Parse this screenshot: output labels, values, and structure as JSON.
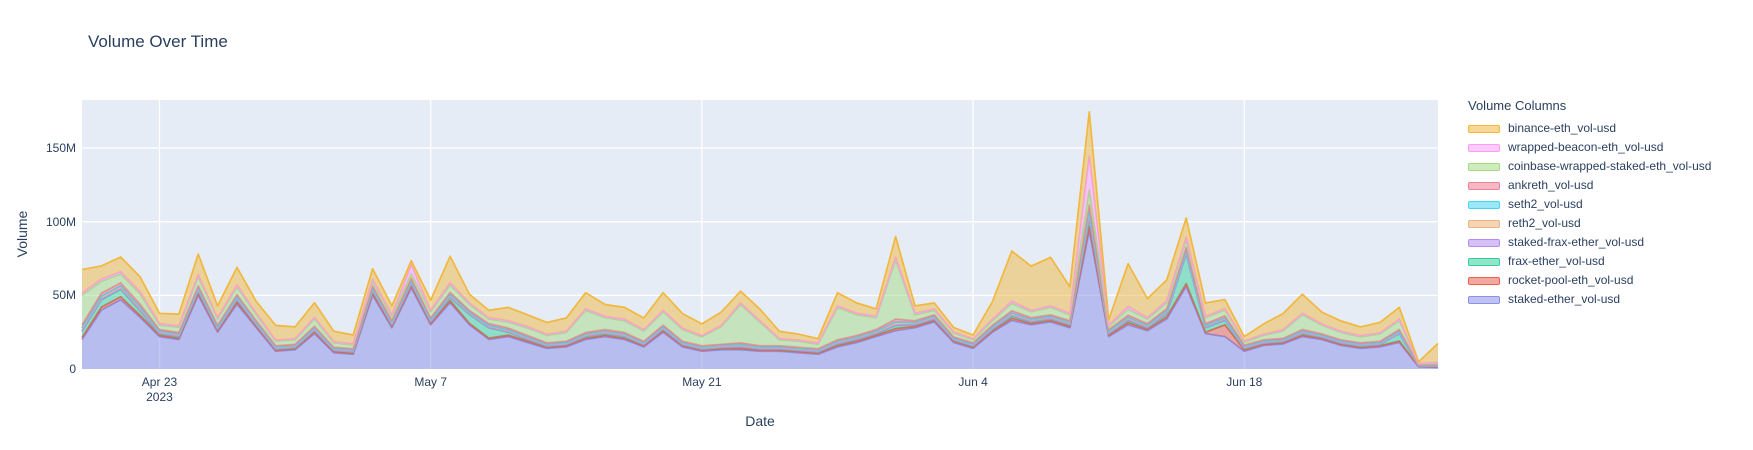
{
  "header": {
    "title": "Volume Over Time"
  },
  "chart_data": {
    "type": "area",
    "stacked": true,
    "title": "Volume Over Time",
    "xlabel": "Date",
    "ylabel": "Volume",
    "legend_title": "Volume Columns",
    "legend_position": "right",
    "grid": true,
    "plot_bg": "#e5ecf6",
    "grid_color": "#ffffff",
    "text_color": "#2a3f5f",
    "fill_alpha": 0.5,
    "unit": "M (millions USD)",
    "ylim": [
      0,
      182.6
    ],
    "yticks": [
      {
        "v": 0,
        "label": "0"
      },
      {
        "v": 50,
        "label": "50M"
      },
      {
        "v": 100,
        "label": "100M"
      },
      {
        "v": 150,
        "label": "150M"
      }
    ],
    "xticks": [
      {
        "day": 4,
        "label": "Apr 23",
        "sublabel": "2023"
      },
      {
        "day": 18,
        "label": "May 7",
        "sublabel": ""
      },
      {
        "day": 32,
        "label": "May 21",
        "sublabel": ""
      },
      {
        "day": 46,
        "label": "Jun 4",
        "sublabel": ""
      },
      {
        "day": 60,
        "label": "Jun 18",
        "sublabel": ""
      }
    ],
    "x": [
      "Apr 19",
      "Apr 20",
      "Apr 21",
      "Apr 22",
      "Apr 23",
      "Apr 24",
      "Apr 25",
      "Apr 26",
      "Apr 27",
      "Apr 28",
      "Apr 29",
      "Apr 30",
      "May 1",
      "May 2",
      "May 3",
      "May 4",
      "May 5",
      "May 6",
      "May 7",
      "May 8",
      "May 9",
      "May 10",
      "May 11",
      "May 12",
      "May 13",
      "May 14",
      "May 15",
      "May 16",
      "May 17",
      "May 18",
      "May 19",
      "May 20",
      "May 21",
      "May 22",
      "May 23",
      "May 24",
      "May 25",
      "May 26",
      "May 27",
      "May 28",
      "May 29",
      "May 30",
      "May 31",
      "Jun 1",
      "Jun 2",
      "Jun 3",
      "Jun 4",
      "Jun 5",
      "Jun 6",
      "Jun 7",
      "Jun 8",
      "Jun 9",
      "Jun 10",
      "Jun 11",
      "Jun 12",
      "Jun 13",
      "Jun 14",
      "Jun 15",
      "Jun 16",
      "Jun 17",
      "Jun 18",
      "Jun 19",
      "Jun 20",
      "Jun 21",
      "Jun 22",
      "Jun 23",
      "Jun 24",
      "Jun 25",
      "Jun 26",
      "Jun 27",
      "Jun 28"
    ],
    "stack_order": "reverse-of-legend",
    "series": [
      {
        "key": "binance-eth",
        "name": "binance-eth_vol-usd",
        "color": "#f2b73d",
        "values": [
          16,
          9,
          10,
          10,
          7,
          8,
          14,
          8,
          12,
          8,
          10,
          8,
          10,
          7,
          6,
          7,
          6,
          3,
          7,
          18,
          6,
          5,
          9,
          8,
          8,
          9,
          11,
          8,
          8,
          8,
          12,
          10,
          8,
          9,
          8,
          8,
          5,
          4,
          3,
          9,
          7,
          5,
          14,
          5,
          4,
          3,
          2.5,
          12,
          34,
          30,
          33,
          18,
          30,
          3.5,
          29,
          13,
          14,
          13,
          9,
          6,
          3,
          7,
          11,
          13,
          8,
          7,
          6,
          7,
          8,
          1,
          13
        ]
      },
      {
        "key": "wrapped-beacon-eth",
        "name": "wrapped-beacon-eth_vol-usd",
        "color": "#fb9ff5",
        "values": [
          1.5,
          1.5,
          1.5,
          1.5,
          1,
          1,
          1.5,
          1,
          1.5,
          1,
          0.8,
          0.8,
          1,
          0.8,
          0.8,
          1.5,
          1,
          6,
          1,
          1.5,
          1,
          1,
          1,
          1,
          0.8,
          0.8,
          1,
          1,
          1,
          0.8,
          1,
          0.8,
          0.8,
          0.8,
          1,
          0.8,
          0.8,
          0.8,
          0.8,
          1,
          1,
          1,
          2,
          1,
          1,
          0.8,
          0.8,
          1,
          1.5,
          1,
          1,
          1,
          23,
          1,
          2,
          1,
          1.5,
          2,
          1,
          1,
          0.8,
          0.8,
          0.8,
          1,
          0.8,
          0.8,
          0.8,
          0.8,
          1,
          0.3,
          0.5
        ]
      },
      {
        "key": "coinbase-wseth",
        "name": "coinbase-wrapped-staked-eth_vol-usd",
        "color": "#a5db84",
        "values": [
          20,
          8,
          6,
          7,
          3,
          3.5,
          6,
          4,
          5,
          4,
          3,
          3,
          5,
          3,
          2.5,
          3,
          3,
          3,
          4,
          5,
          4,
          3,
          4,
          5,
          5,
          6,
          15,
          8,
          8,
          7,
          9,
          8,
          6,
          12,
          26,
          16,
          4,
          4,
          3,
          22,
          14,
          8,
          40,
          4,
          3,
          2.5,
          2,
          3,
          5,
          4,
          5,
          4,
          10,
          2,
          4,
          3,
          4,
          5,
          4,
          4,
          2,
          3,
          5,
          10,
          6,
          5,
          4,
          5,
          6,
          0.5,
          1
        ]
      },
      {
        "key": "ankreth",
        "name": "ankreth_vol-usd",
        "color": "#f17e96",
        "values": [
          2,
          2,
          2,
          2,
          1.2,
          1.2,
          1.5,
          1.2,
          1.5,
          1.2,
          1,
          1,
          1.2,
          1,
          1,
          1.5,
          1.2,
          1.5,
          1.2,
          1.5,
          1.2,
          1.2,
          1.2,
          1.2,
          1,
          1,
          1.2,
          1.2,
          1.2,
          1,
          1.2,
          1,
          1,
          1,
          1.2,
          1,
          1,
          1,
          1,
          1.2,
          1.2,
          1.2,
          2,
          1.2,
          1.2,
          1,
          1,
          1.2,
          1.5,
          1.2,
          1.2,
          1.2,
          4,
          1.2,
          1.5,
          1.2,
          1.5,
          2,
          1.2,
          1.5,
          1,
          1,
          1,
          1.2,
          1,
          1,
          1,
          1,
          1.2,
          0.4,
          0.5
        ]
      },
      {
        "key": "seth2",
        "name": "seth2_vol-usd",
        "color": "#46d4f0",
        "values": [
          0.5,
          0.5,
          0.5,
          0.5,
          0.3,
          0.3,
          0.4,
          0.3,
          0.4,
          0.3,
          0.2,
          0.2,
          0.3,
          0.2,
          0.2,
          0.4,
          0.3,
          0.4,
          0.3,
          0.4,
          0.3,
          0.3,
          0.3,
          0.3,
          0.2,
          0.2,
          0.3,
          0.3,
          0.3,
          0.2,
          0.3,
          0.2,
          0.2,
          0.2,
          0.3,
          0.2,
          0.2,
          0.2,
          0.2,
          0.3,
          0.3,
          0.3,
          0.5,
          0.3,
          0.3,
          0.2,
          0.2,
          0.3,
          0.4,
          0.3,
          0.3,
          0.3,
          1.5,
          0.3,
          0.4,
          0.3,
          0.4,
          0.5,
          0.3,
          0.3,
          0.2,
          0.2,
          0.2,
          0.3,
          0.2,
          0.2,
          0.2,
          0.2,
          0.3,
          0.1,
          0.1
        ]
      },
      {
        "key": "reth2",
        "name": "reth2_vol-usd",
        "color": "#eeb17d",
        "values": [
          1.5,
          1.5,
          1.5,
          1.5,
          1,
          1,
          1.2,
          1,
          1.2,
          1,
          0.8,
          0.8,
          1,
          0.8,
          0.8,
          1.2,
          1,
          1.2,
          1,
          1.2,
          1,
          1,
          1,
          1,
          0.8,
          0.8,
          1,
          1,
          1,
          0.8,
          1,
          0.8,
          0.8,
          0.8,
          1,
          0.8,
          0.8,
          0.8,
          0.8,
          1,
          1,
          1,
          1.5,
          1,
          1,
          0.8,
          0.8,
          1,
          1.2,
          1,
          1,
          1,
          3,
          1,
          1.2,
          1,
          1.2,
          1.5,
          1,
          1,
          0.8,
          0.8,
          0.8,
          1,
          0.8,
          0.8,
          0.8,
          0.8,
          1,
          0.3,
          0.4
        ]
      },
      {
        "key": "staked-frax-ether",
        "name": "staked-frax-ether_vol-usd",
        "color": "#b78cf2",
        "values": [
          0.5,
          0.5,
          0.5,
          0.5,
          0.3,
          0.3,
          0.4,
          0.3,
          0.4,
          0.3,
          0.2,
          0.2,
          0.3,
          0.2,
          0.2,
          0.4,
          0.3,
          0.4,
          0.3,
          0.4,
          0.3,
          0.3,
          0.3,
          0.3,
          0.2,
          0.2,
          0.3,
          0.3,
          0.3,
          0.2,
          0.3,
          0.2,
          0.2,
          0.2,
          0.3,
          0.2,
          0.2,
          0.2,
          0.2,
          0.3,
          0.3,
          0.3,
          0.4,
          0.3,
          0.3,
          0.2,
          0.2,
          0.3,
          0.4,
          0.3,
          0.3,
          0.3,
          1,
          0.3,
          0.4,
          0.3,
          0.4,
          0.5,
          0.3,
          0.3,
          0.2,
          0.2,
          0.2,
          0.3,
          0.2,
          0.2,
          0.2,
          0.2,
          0.3,
          0.1,
          0.1
        ]
      },
      {
        "key": "frax-ether",
        "name": "frax-ether_vol-usd",
        "color": "#37cf9b",
        "values": [
          4,
          5,
          5,
          3,
          1,
          1,
          1.5,
          1,
          1.5,
          1,
          0.8,
          0.8,
          1,
          0.8,
          0.8,
          1.5,
          1,
          1.5,
          1,
          2,
          6,
          7,
          2,
          1,
          0.8,
          0.8,
          1,
          1,
          1,
          0.8,
          1,
          0.8,
          0.8,
          0.8,
          1,
          0.8,
          0.8,
          0.8,
          0.8,
          1,
          1,
          1,
          2,
          1,
          1,
          0.8,
          0.8,
          1,
          1.5,
          1,
          1,
          1,
          5,
          1,
          1.5,
          1,
          2,
          20,
          3,
          3,
          1,
          0.8,
          0.8,
          1,
          0.8,
          0.8,
          0.8,
          0.8,
          5,
          0.3,
          0.4
        ]
      },
      {
        "key": "rocket-pool-eth",
        "name": "rocket-pool-eth_vol-usd",
        "color": "#e8604c",
        "values": [
          1.5,
          2,
          2,
          1.5,
          1,
          1,
          1.5,
          1,
          1.5,
          1,
          0.8,
          0.8,
          1.2,
          0.8,
          0.8,
          1.5,
          1,
          1.5,
          1,
          1.5,
          1,
          1,
          1,
          1,
          0.8,
          0.8,
          1,
          1,
          1,
          0.8,
          1,
          0.8,
          0.8,
          0.8,
          1,
          0.8,
          0.8,
          0.8,
          0.8,
          1,
          1,
          1,
          1.5,
          1,
          1,
          0.8,
          0.8,
          1,
          1.5,
          1,
          1,
          1,
          3,
          1,
          1.5,
          1,
          1.5,
          2,
          1,
          8,
          1,
          0.8,
          0.8,
          1,
          0.8,
          0.8,
          0.8,
          0.8,
          1,
          0.3,
          0.4
        ]
      },
      {
        "key": "staked-ether",
        "name": "staked-ether_vol-usd",
        "color": "#8a90e8",
        "values": [
          20,
          40,
          47,
          35,
          22,
          20,
          50,
          25,
          44,
          28,
          12,
          13,
          24,
          11,
          10,
          50,
          28,
          55,
          30,
          45,
          30,
          20,
          22,
          18,
          14,
          15,
          20,
          22,
          20,
          15,
          25,
          15,
          12,
          13,
          13,
          12,
          12,
          11,
          10,
          15,
          18,
          22,
          26,
          28,
          32,
          18,
          14,
          25,
          33,
          30,
          32,
          28,
          94,
          22,
          30,
          26,
          34,
          56,
          24,
          22,
          12,
          16,
          17,
          22,
          20,
          16,
          14,
          15,
          18,
          1.5,
          1
        ]
      }
    ]
  }
}
